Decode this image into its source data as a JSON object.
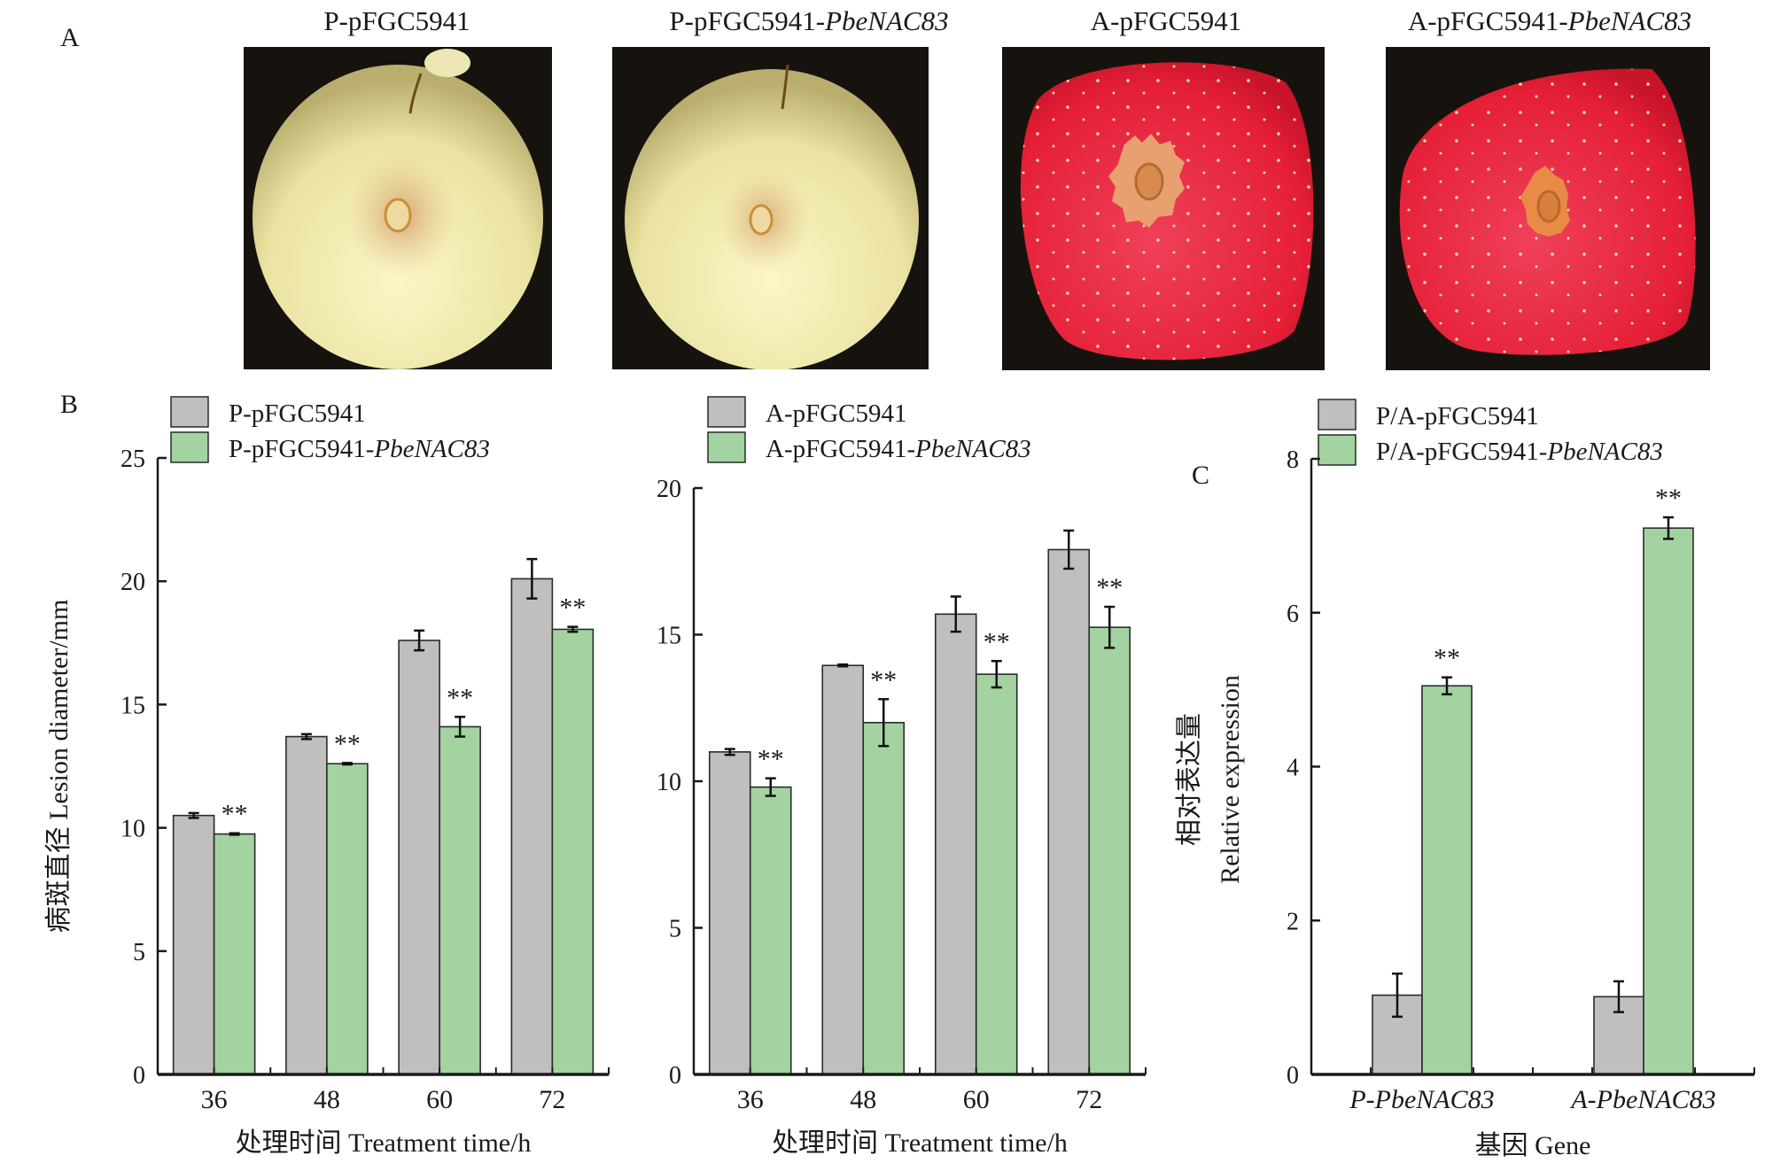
{
  "panels": {
    "a_label": "A",
    "b_label": "B",
    "c_label": "C"
  },
  "photos": [
    {
      "title_prefix": "P-pFGC5941",
      "title_italic": "",
      "fruit": "pear",
      "variant": "control"
    },
    {
      "title_prefix": "P-pFGC5941-",
      "title_italic": "PbeNAC83",
      "fruit": "pear",
      "variant": "overexpression"
    },
    {
      "title_prefix": "A-pFGC5941",
      "title_italic": "",
      "fruit": "apple",
      "variant": "control"
    },
    {
      "title_prefix": "A-pFGC5941-",
      "title_italic": "PbeNAC83",
      "fruit": "apple",
      "variant": "overexpression"
    }
  ],
  "colors": {
    "control": "#c0bfbd",
    "overexpression": "#a2d3a0",
    "axis": "#1a1a1a",
    "pear_skin": "#efe7a8",
    "pear_lesion": "#d9a877",
    "apple_skin": "#e8223a",
    "apple_lesion": "#e6955b",
    "photo_bg": "#16130f"
  },
  "chart_data": [
    {
      "id": "B1",
      "type": "bar",
      "title": "",
      "xlabel": "处理时间 Treatment time/h",
      "ylabel": "病斑直径 Lesion diameter/mm",
      "categories": [
        "36",
        "48",
        "60",
        "72"
      ],
      "ylim": [
        0,
        25
      ],
      "yticks": [
        0,
        5,
        10,
        15,
        20,
        25
      ],
      "legend_position": "top-left",
      "grid": false,
      "series": [
        {
          "name": "P-pFGC5941",
          "name_italic": "",
          "color_key": "control",
          "values": [
            10.5,
            13.7,
            17.6,
            20.1
          ],
          "errors": [
            0.1,
            0.1,
            0.4,
            0.8
          ],
          "sig": [
            "",
            "",
            "",
            ""
          ]
        },
        {
          "name": "P-pFGC5941-",
          "name_italic": "PbeNAC83",
          "color_key": "overexpression",
          "values": [
            9.75,
            12.6,
            14.1,
            18.05
          ],
          "errors": [
            0.03,
            0.03,
            0.4,
            0.1
          ],
          "sig": [
            "**",
            "**",
            "**",
            "**"
          ]
        }
      ]
    },
    {
      "id": "B2",
      "type": "bar",
      "title": "",
      "xlabel": "处理时间 Treatment time/h",
      "ylabel": "",
      "categories": [
        "36",
        "48",
        "60",
        "72"
      ],
      "ylim": [
        0,
        20
      ],
      "yticks": [
        0,
        5,
        10,
        15,
        20
      ],
      "legend_position": "top-left",
      "grid": false,
      "series": [
        {
          "name": "A-pFGC5941",
          "name_italic": "",
          "color_key": "control",
          "values": [
            11.0,
            13.95,
            15.7,
            17.9
          ],
          "errors": [
            0.1,
            0.03,
            0.6,
            0.65
          ],
          "sig": [
            "",
            "",
            "",
            ""
          ]
        },
        {
          "name": "A-pFGC5941-",
          "name_italic": "PbeNAC83",
          "color_key": "overexpression",
          "values": [
            9.8,
            12.0,
            13.65,
            15.25
          ],
          "errors": [
            0.3,
            0.8,
            0.45,
            0.7
          ],
          "sig": [
            "**",
            "**",
            "**",
            "**"
          ]
        }
      ]
    },
    {
      "id": "C",
      "type": "bar",
      "title": "",
      "xlabel": "基因 Gene",
      "ylabel_line1": "相对表达量",
      "ylabel_line2": "Relative expression",
      "categories": [
        "P-PbeNAC83",
        "A-PbeNAC83"
      ],
      "categories_italic": true,
      "ylim": [
        0,
        8
      ],
      "yticks": [
        0,
        2,
        4,
        6,
        8
      ],
      "legend_position": "top-left",
      "grid": false,
      "series": [
        {
          "name": "P/A-pFGC5941",
          "name_italic": "",
          "color_key": "control",
          "values": [
            1.03,
            1.01
          ],
          "errors": [
            0.28,
            0.2
          ],
          "sig": [
            "",
            ""
          ]
        },
        {
          "name": "P/A-pFGC5941-",
          "name_italic": "PbeNAC83",
          "color_key": "overexpression",
          "values": [
            5.05,
            7.1
          ],
          "errors": [
            0.11,
            0.14
          ],
          "sig": [
            "**",
            "**"
          ]
        }
      ]
    }
  ]
}
